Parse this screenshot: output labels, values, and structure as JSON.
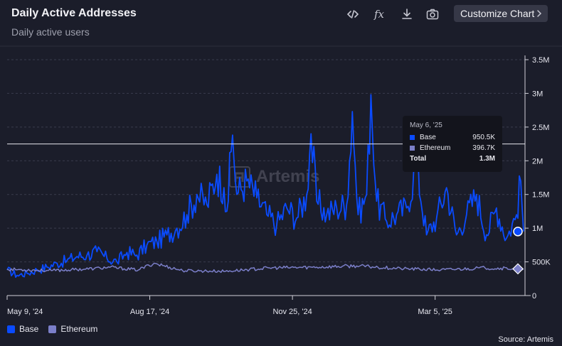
{
  "header": {
    "title": "Daily Active Addresses",
    "subtitle": "Daily active users",
    "customize_label": "Customize Chart"
  },
  "toolbar": {
    "icons": [
      "code-icon",
      "formula-icon",
      "download-icon",
      "camera-icon"
    ],
    "fx_label": "fx"
  },
  "watermark": {
    "text": "Artemis"
  },
  "tooltip": {
    "date": "May 6, '25",
    "rows": [
      {
        "label": "Base",
        "value": "950.5K"
      },
      {
        "label": "Ethereum",
        "value": "396.7K"
      }
    ],
    "total_label": "Total",
    "total_value": "1.3M"
  },
  "legend": [
    {
      "label": "Base",
      "color": "#0a4bff"
    },
    {
      "label": "Ethereum",
      "color": "#7b7fc9"
    }
  ],
  "source": "Source: Artemis",
  "chart_data": {
    "type": "line",
    "x_ticks": [
      "May 9, '24",
      "Aug 17, '24",
      "Nov 25, '24",
      "Mar 5, '25"
    ],
    "y_ticks": [
      "0",
      "500K",
      "1M",
      "1.5M",
      "2M",
      "2.5M",
      "3M",
      "3.5M"
    ],
    "ylim": [
      0,
      3500000
    ],
    "x_range": [
      "2024-05-09",
      "2025-05-06"
    ],
    "grid": true,
    "legend_position": "bottom-left",
    "series": [
      {
        "name": "Base",
        "color": "#0a4bff",
        "points": [
          [
            "2024-05-09",
            380000
          ],
          [
            "2024-05-16",
            300000
          ],
          [
            "2024-05-23",
            330000
          ],
          [
            "2024-05-30",
            380000
          ],
          [
            "2024-06-06",
            420000
          ],
          [
            "2024-06-13",
            480000
          ],
          [
            "2024-06-20",
            520000
          ],
          [
            "2024-06-27",
            580000
          ],
          [
            "2024-07-04",
            600000
          ],
          [
            "2024-07-11",
            650000
          ],
          [
            "2024-07-18",
            550000
          ],
          [
            "2024-07-25",
            500000
          ],
          [
            "2024-08-01",
            640000
          ],
          [
            "2024-08-08",
            600000
          ],
          [
            "2024-08-15",
            750000
          ],
          [
            "2024-08-22",
            800000
          ],
          [
            "2024-08-29",
            900000
          ],
          [
            "2024-09-05",
            1000000
          ],
          [
            "2024-09-12",
            1200000
          ],
          [
            "2024-09-19",
            1500000
          ],
          [
            "2024-09-26",
            1350000
          ],
          [
            "2024-10-03",
            1800000
          ],
          [
            "2024-10-08",
            1600000
          ],
          [
            "2024-10-10",
            1250000
          ],
          [
            "2024-10-14",
            2380000
          ],
          [
            "2024-10-17",
            1500000
          ],
          [
            "2024-10-24",
            1700000
          ],
          [
            "2024-10-31",
            1450000
          ],
          [
            "2024-11-07",
            1200000
          ],
          [
            "2024-11-14",
            1050000
          ],
          [
            "2024-11-21",
            1300000
          ],
          [
            "2024-11-28",
            1150000
          ],
          [
            "2024-12-05",
            1500000
          ],
          [
            "2024-12-08",
            2400000
          ],
          [
            "2024-12-12",
            1400000
          ],
          [
            "2024-12-19",
            1200000
          ],
          [
            "2024-12-26",
            1300000
          ],
          [
            "2025-01-02",
            1350000
          ],
          [
            "2025-01-06",
            2730000
          ],
          [
            "2025-01-10",
            1200000
          ],
          [
            "2025-01-16",
            1500000
          ],
          [
            "2025-01-19",
            2980000
          ],
          [
            "2025-01-23",
            1400000
          ],
          [
            "2025-01-30",
            1100000
          ],
          [
            "2025-02-06",
            1200000
          ],
          [
            "2025-02-13",
            1300000
          ],
          [
            "2025-02-20",
            1950000
          ],
          [
            "2025-02-27",
            900000
          ],
          [
            "2025-03-06",
            1150000
          ],
          [
            "2025-03-13",
            1600000
          ],
          [
            "2025-03-20",
            900000
          ],
          [
            "2025-03-27",
            1200000
          ],
          [
            "2025-04-03",
            1500000
          ],
          [
            "2025-04-10",
            900000
          ],
          [
            "2025-04-17",
            1300000
          ],
          [
            "2025-04-24",
            850000
          ],
          [
            "2025-05-01",
            1200000
          ],
          [
            "2025-05-04",
            1700000
          ],
          [
            "2025-05-06",
            950500
          ]
        ]
      },
      {
        "name": "Ethereum",
        "color": "#7b7fc9",
        "points": [
          [
            "2024-05-09",
            390000
          ],
          [
            "2024-06-09",
            370000
          ],
          [
            "2024-07-09",
            400000
          ],
          [
            "2024-07-20",
            420000
          ],
          [
            "2024-08-09",
            380000
          ],
          [
            "2024-08-20",
            480000
          ],
          [
            "2024-09-09",
            370000
          ],
          [
            "2024-10-09",
            360000
          ],
          [
            "2024-11-09",
            410000
          ],
          [
            "2024-12-09",
            420000
          ],
          [
            "2025-01-09",
            440000
          ],
          [
            "2025-02-09",
            400000
          ],
          [
            "2025-03-09",
            380000
          ],
          [
            "2025-04-09",
            410000
          ],
          [
            "2025-05-06",
            396700
          ]
        ]
      }
    ]
  }
}
